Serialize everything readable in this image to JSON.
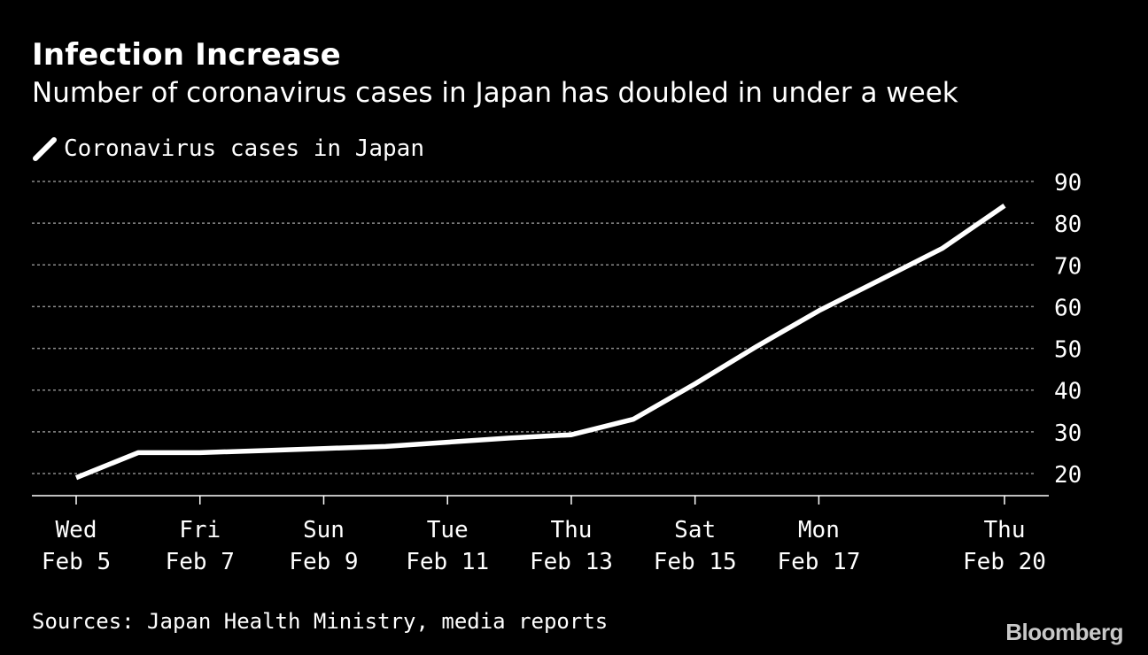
{
  "header": {
    "title": "Infection Increase",
    "subtitle": "Number of coronavirus cases in Japan has doubled in under a week"
  },
  "legend": {
    "label": "Coronavirus cases in Japan"
  },
  "footer": {
    "source": "Sources: Japan Health Ministry, media reports",
    "brand": "Bloomberg"
  },
  "colors": {
    "background": "#000000",
    "line": "#ffffff",
    "grid": "#8a8a8a",
    "text": "#ffffff"
  },
  "chart_data": {
    "type": "line",
    "title": "Infection Increase",
    "subtitle": "Number of coronavirus cases in Japan has doubled in under a week",
    "xlabel": "",
    "ylabel": "",
    "ylim": [
      15,
      90
    ],
    "yticks": [
      20,
      30,
      40,
      50,
      60,
      70,
      80,
      90
    ],
    "grid": true,
    "legend_position": "top-left",
    "x_days": [
      0,
      15
    ],
    "x_ticks": [
      {
        "day": 0,
        "weekday": "Wed",
        "date": "Feb 5"
      },
      {
        "day": 2,
        "weekday": "Fri",
        "date": "Feb 7"
      },
      {
        "day": 4,
        "weekday": "Sun",
        "date": "Feb 9"
      },
      {
        "day": 6,
        "weekday": "Tue",
        "date": "Feb 11"
      },
      {
        "day": 8,
        "weekday": "Thu",
        "date": "Feb 13"
      },
      {
        "day": 10,
        "weekday": "Sat",
        "date": "Feb 15"
      },
      {
        "day": 12,
        "weekday": "Mon",
        "date": "Feb 17"
      },
      {
        "day": 15,
        "weekday": "Thu",
        "date": "Feb 20"
      }
    ],
    "series": [
      {
        "name": "Coronavirus cases in Japan",
        "points": [
          {
            "day": 0,
            "value": 19
          },
          {
            "day": 1,
            "value": 25
          },
          {
            "day": 2,
            "value": 25
          },
          {
            "day": 3,
            "value": 25.5
          },
          {
            "day": 4,
            "value": 26
          },
          {
            "day": 5,
            "value": 26.5
          },
          {
            "day": 6,
            "value": 27.5
          },
          {
            "day": 7,
            "value": 28.5
          },
          {
            "day": 8,
            "value": 29.3
          },
          {
            "day": 9,
            "value": 33
          },
          {
            "day": 10,
            "value": 41.5
          },
          {
            "day": 11,
            "value": 50.5
          },
          {
            "day": 12,
            "value": 59
          },
          {
            "day": 13,
            "value": 66.5
          },
          {
            "day": 14,
            "value": 74
          },
          {
            "day": 15,
            "value": 84.2
          }
        ]
      }
    ]
  }
}
